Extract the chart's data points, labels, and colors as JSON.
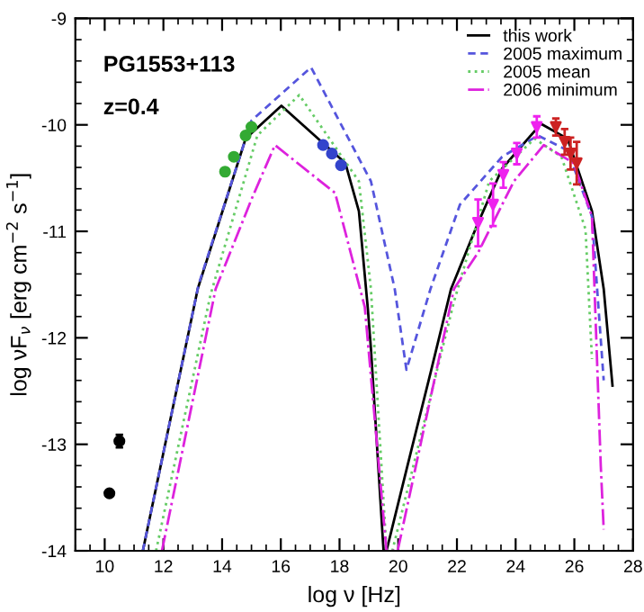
{
  "chart_data": {
    "type": "line",
    "xlabel": "log ν [Hz]",
    "ylabel": "log νF$_{ν}$ [erg cm$^{−2}$ s$^{−1}$]",
    "xlim": [
      9,
      28
    ],
    "ylim": [
      -14,
      -9
    ],
    "xticks": [
      10,
      12,
      14,
      16,
      18,
      20,
      22,
      24,
      26,
      28
    ],
    "yticks": [
      -14,
      -13,
      -12,
      -11,
      -10,
      -9
    ],
    "legend": "top right",
    "grid": false,
    "annotations": [
      "PG1553+113",
      "z=0.4"
    ],
    "series": [
      {
        "name": "this work",
        "color": "#000000",
        "line_style": "solid",
        "x": [
          11.3,
          13.17,
          14.8,
          16.02,
          18.2,
          18.66,
          18.96,
          19.07,
          19.5,
          19.6,
          20.28,
          21.1,
          21.8,
          22.72,
          23.54,
          24.86,
          25.77,
          26.6,
          27.0,
          27.3
        ],
        "values": [
          -14,
          -11.54,
          -10.13,
          -9.82,
          -10.36,
          -10.81,
          -11.71,
          -12.1,
          -14,
          -14,
          -13.24,
          -12.33,
          -11.54,
          -10.92,
          -10.41,
          -9.99,
          -10.13,
          -10.81,
          -11.54,
          -12.45
        ]
      },
      {
        "name": "2005 maximum",
        "color": "#5555dd",
        "line_style": "dashed",
        "x": [
          11.3,
          13.2,
          15.0,
          17.03,
          19.07,
          19.88,
          20.28,
          21.1,
          22.1,
          23.54,
          24.76,
          25.77,
          26.6,
          27.0
        ],
        "values": [
          -14,
          -11.5,
          -9.96,
          -9.46,
          -10.53,
          -11.54,
          -12.3,
          -11.54,
          -10.75,
          -10.3,
          -10.1,
          -10.24,
          -10.86,
          -12.4
        ]
      },
      {
        "name": "2005 mean",
        "color": "#66cc66",
        "line_style": "dotted",
        "x": [
          11.75,
          13.6,
          15.2,
          16.63,
          18.66,
          19.07,
          19.6,
          19.8,
          21.9,
          23.1,
          24.65,
          25.56,
          26.38,
          26.6
        ],
        "values": [
          -14,
          -11.6,
          -10.1,
          -9.72,
          -10.53,
          -11.54,
          -14,
          -14,
          -11.66,
          -10.53,
          -10.13,
          -10.3,
          -10.98,
          -12.2
        ]
      },
      {
        "name": "2006 minimum",
        "color": "#dd22dd",
        "line_style": "dashdot",
        "x": [
          11.95,
          13.78,
          15.0,
          15.8,
          17.85,
          18.86,
          19.6,
          19.98,
          21.9,
          22.72,
          23.94,
          24.96,
          25.98,
          26.6,
          26.9,
          27.0
        ],
        "values": [
          -14,
          -11.54,
          -10.7,
          -10.19,
          -10.64,
          -11.71,
          -14,
          -14,
          -11.54,
          -11.2,
          -10.53,
          -10.19,
          -10.36,
          -10.86,
          -13.2,
          -13.8
        ]
      },
      {
        "type": "scatter",
        "color": "#000000",
        "marker": "circle",
        "x": [
          10.16,
          10.5
        ],
        "values": [
          -13.46,
          -12.97
        ],
        "errors": [
          null,
          0.06
        ]
      },
      {
        "type": "scatter",
        "color": "#33aa33",
        "marker": "circle",
        "x": [
          14.1,
          14.4,
          14.8,
          15.0
        ],
        "values": [
          -10.44,
          -10.3,
          -10.1,
          -10.02
        ]
      },
      {
        "type": "scatter",
        "color": "#3344cc",
        "marker": "circle",
        "x": [
          17.44,
          17.74,
          18.05
        ],
        "values": [
          -10.19,
          -10.27,
          -10.38
        ]
      },
      {
        "type": "scatter",
        "color": "#ee22ee",
        "marker": "triangle",
        "x": [
          22.72,
          23.23,
          23.58,
          24.04,
          24.72
        ],
        "values": [
          -10.92,
          -10.75,
          -10.47,
          -10.27,
          -10.02
        ],
        "errors": [
          0.22,
          0.2,
          0.12,
          0.1,
          0.1
        ]
      },
      {
        "type": "scatter",
        "color": "#cc2222",
        "marker": "triangle",
        "x": [
          25.37,
          25.67,
          25.87,
          26.08
        ],
        "values": [
          -10.02,
          -10.16,
          -10.27,
          -10.36
        ],
        "errors": [
          0.08,
          0.12,
          0.15,
          0.2
        ]
      }
    ]
  }
}
